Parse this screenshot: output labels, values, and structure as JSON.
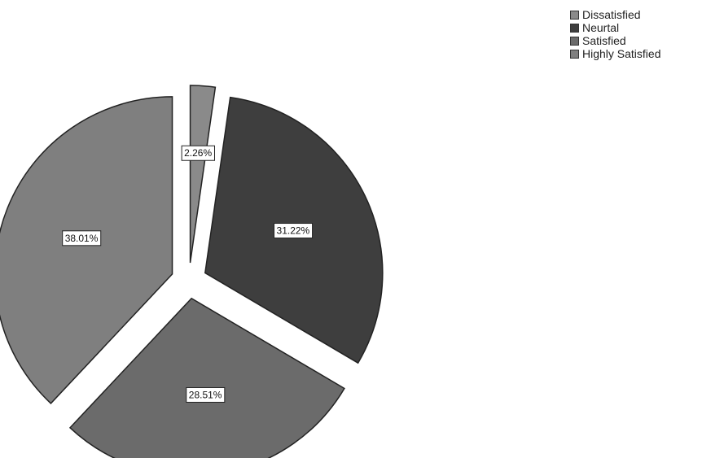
{
  "chart_data": {
    "type": "pie",
    "categories": [
      "Dissatisfied",
      "Neurtal",
      "Satisfied",
      "Highly Satisfied"
    ],
    "values": [
      2.26,
      31.22,
      28.51,
      38.01
    ],
    "labels": [
      "2.26%",
      "31.22%",
      "28.51%",
      "38.01%"
    ],
    "colors": [
      "#8a8a8a",
      "#3e3e3e",
      "#6b6b6b",
      "#7f7f7f"
    ],
    "exploded": true,
    "legend_position": "top-right",
    "title": ""
  }
}
